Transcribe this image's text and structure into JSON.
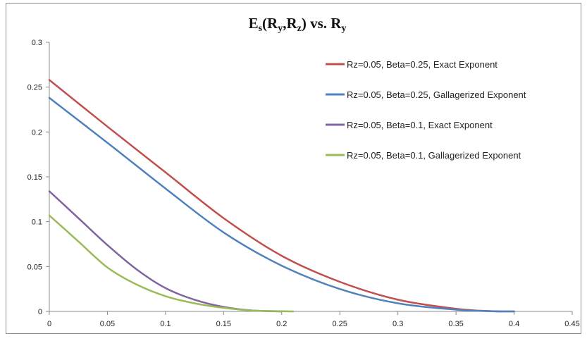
{
  "chart_data": {
    "type": "line",
    "title": {
      "parts": [
        {
          "text": "E",
          "sub": false
        },
        {
          "text": "s",
          "sub": true
        },
        {
          "text": "(R",
          "sub": false
        },
        {
          "text": "y",
          "sub": true
        },
        {
          "text": ",R",
          "sub": false
        },
        {
          "text": "z",
          "sub": true
        },
        {
          "text": ") vs. R",
          "sub": false
        },
        {
          "text": "y",
          "sub": true
        }
      ]
    },
    "xlim": [
      0,
      0.45
    ],
    "ylim": [
      0,
      0.3
    ],
    "x_ticks": [
      0,
      0.05,
      0.1,
      0.15,
      0.2,
      0.25,
      0.3,
      0.35,
      0.4,
      0.45
    ],
    "x_tick_labels": [
      "0",
      "0.05",
      "0.1",
      "0.15",
      "0.2",
      "0.25",
      "0.3",
      "0.35",
      "0.4",
      "0.45"
    ],
    "y_ticks": [
      0,
      0.05,
      0.1,
      0.15,
      0.2,
      0.25,
      0.3
    ],
    "y_tick_labels": [
      "0",
      "0.05",
      "0.1",
      "0.15",
      "0.2",
      "0.25",
      "0.3"
    ],
    "grid": false,
    "legend_position": "top-right",
    "series": [
      {
        "name": "Rz=0.05, Beta=0.25, Exact Exponent",
        "color": "#c0504d",
        "x": [
          0,
          0.05,
          0.1,
          0.15,
          0.2,
          0.25,
          0.3,
          0.35,
          0.38,
          0.4
        ],
        "y": [
          0.258,
          0.206,
          0.155,
          0.104,
          0.062,
          0.033,
          0.013,
          0.003,
          0.0003,
          0
        ]
      },
      {
        "name": "Rz=0.05, Beta=0.25, Gallagerized Exponent",
        "color": "#4f81bd",
        "x": [
          0,
          0.05,
          0.1,
          0.15,
          0.2,
          0.25,
          0.3,
          0.35,
          0.38,
          0.4
        ],
        "y": [
          0.238,
          0.188,
          0.137,
          0.088,
          0.051,
          0.025,
          0.009,
          0.002,
          0.0002,
          0
        ]
      },
      {
        "name": "Rz=0.05, Beta=0.1, Exact Exponent",
        "color": "#8064a2",
        "x": [
          0,
          0.025,
          0.05,
          0.075,
          0.1,
          0.125,
          0.15,
          0.175,
          0.2
        ],
        "y": [
          0.134,
          0.104,
          0.074,
          0.047,
          0.026,
          0.013,
          0.005,
          0.001,
          0
        ]
      },
      {
        "name": "Rz=0.05, Beta=0.1, Gallagerized Exponent",
        "color": "#9bbb59",
        "x": [
          0,
          0.025,
          0.05,
          0.075,
          0.1,
          0.125,
          0.15,
          0.175,
          0.21
        ],
        "y": [
          0.107,
          0.078,
          0.049,
          0.03,
          0.017,
          0.009,
          0.004,
          0.001,
          0
        ]
      }
    ]
  }
}
